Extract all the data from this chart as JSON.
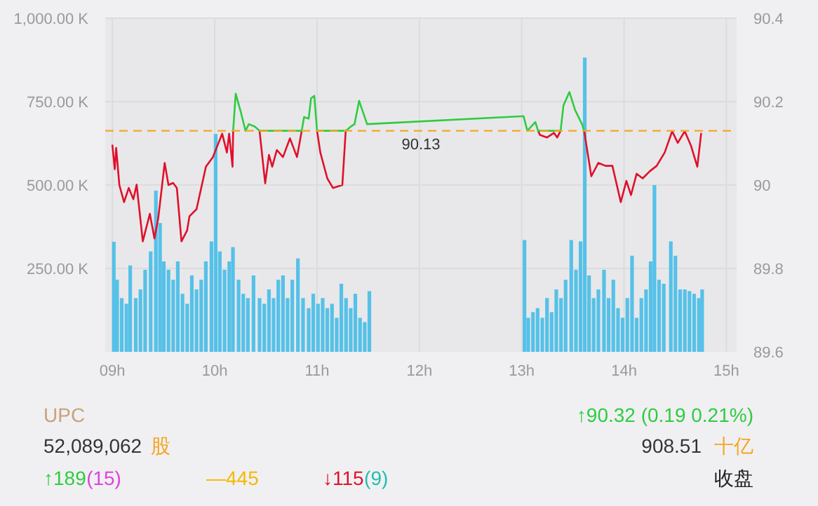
{
  "chart_data": {
    "type": "line",
    "xlim": [
      8.93,
      15.1
    ],
    "xticks": [
      {
        "value": 9,
        "label": "09h"
      },
      {
        "value": 10,
        "label": "10h"
      },
      {
        "value": 11,
        "label": "11h"
      },
      {
        "value": 12,
        "label": "12h"
      },
      {
        "value": 13,
        "label": "13h"
      },
      {
        "value": 14,
        "label": "14h"
      },
      {
        "value": 15,
        "label": "15h"
      }
    ],
    "ylim": [
      0,
      1000
    ],
    "yticks": [
      {
        "value": 250,
        "label": "250.00 K"
      },
      {
        "value": 500,
        "label": "500.00 K"
      },
      {
        "value": 750,
        "label": "750.00 K"
      },
      {
        "value": 1000,
        "label": "1,000.00 K"
      }
    ],
    "y2lim": [
      89.6,
      90.4
    ],
    "y2ticks": [
      89.6,
      89.8,
      90,
      90.2,
      90.4
    ],
    "grid": true,
    "ref_lines": [
      {
        "axis": "y2",
        "value": 90.13,
        "label": "90.13",
        "color": "#f5a623",
        "line_style": "dashed"
      }
    ],
    "series": [
      {
        "type": "bar",
        "axis": "y",
        "color": "#56c1e8",
        "x": [
          9.014,
          9.046,
          9.091,
          9.137,
          9.174,
          9.228,
          9.274,
          9.32,
          9.374,
          9.425,
          9.466,
          9.502,
          9.548,
          9.594,
          9.639,
          9.685,
          9.731,
          9.776,
          9.822,
          9.868,
          9.913,
          9.968,
          10.009,
          10.05,
          10.096,
          10.142,
          10.178,
          10.233,
          10.279,
          10.324,
          10.379,
          10.438,
          10.484,
          10.53,
          10.575,
          10.621,
          10.667,
          10.712,
          10.758,
          10.813,
          10.863,
          10.918,
          10.963,
          11.009,
          11.055,
          11.1,
          11.146,
          11.192,
          11.237,
          11.283,
          11.329,
          11.374,
          11.42,
          11.466,
          11.511,
          13.027,
          13.064,
          13.11,
          13.155,
          13.201,
          13.247,
          13.292,
          13.338,
          13.384,
          13.429,
          13.484,
          13.53,
          13.575,
          13.616,
          13.658,
          13.703,
          13.749,
          13.804,
          13.849,
          13.895,
          13.941,
          13.986,
          14.032,
          14.078,
          14.123,
          14.169,
          14.215,
          14.26,
          14.297,
          14.342,
          14.388,
          14.457,
          14.502,
          14.548,
          14.594,
          14.639,
          14.685,
          14.731,
          14.763
        ],
        "values": [
          330,
          216,
          161,
          144,
          259,
          161,
          187,
          246,
          301,
          483,
          386,
          271,
          246,
          216,
          271,
          174,
          144,
          229,
          187,
          216,
          271,
          331,
          653,
          301,
          246,
          271,
          314,
          216,
          174,
          161,
          229,
          161,
          144,
          187,
          161,
          216,
          229,
          161,
          216,
          280,
          161,
          131,
          174,
          144,
          161,
          131,
          144,
          102,
          204,
          161,
          131,
          174,
          102,
          89,
          182,
          335,
          102,
          119,
          131,
          102,
          161,
          119,
          187,
          161,
          216,
          335,
          246,
          331,
          882,
          229,
          161,
          187,
          246,
          161,
          216,
          131,
          102,
          161,
          288,
          102,
          161,
          187,
          271,
          500,
          216,
          204,
          331,
          288,
          187,
          187,
          182,
          174,
          161,
          187
        ]
      },
      {
        "axis": "y2",
        "color": "#e0102a",
        "x": [
          9.0,
          9.023,
          9.037,
          9.068,
          9.114,
          9.16,
          9.205,
          9.237,
          9.297,
          9.366,
          9.411,
          9.448,
          9.511,
          9.548,
          9.593,
          9.63,
          9.675,
          9.73,
          9.753,
          9.822,
          9.914,
          9.982,
          10.073,
          10.119,
          10.141,
          10.174,
          10.18,
          10.205,
          10.256,
          10.301,
          10.333,
          10.393,
          10.438,
          10.493,
          10.53,
          10.562,
          10.607,
          10.667,
          10.735,
          10.804,
          10.85,
          10.873,
          10.918,
          10.941,
          10.973,
          11.0,
          11.032,
          11.1,
          11.155,
          11.247,
          11.28,
          11.329,
          11.366,
          11.411,
          11.489,
          13.018,
          13.055,
          13.133,
          13.16,
          13.178,
          13.247,
          13.315,
          13.347,
          13.38,
          13.408,
          13.466,
          13.521,
          13.589,
          13.61,
          13.68,
          13.749,
          13.818,
          13.886,
          13.968,
          14.023,
          14.068,
          14.123,
          14.182,
          14.251,
          14.319,
          14.397,
          14.47,
          14.525,
          14.593,
          14.653,
          14.716,
          14.753
        ],
        "values": [
          90.095,
          90.038,
          90.089,
          90.0,
          89.959,
          89.993,
          89.966,
          90.001,
          89.865,
          89.931,
          89.872,
          89.92,
          90.053,
          90.0,
          90.005,
          89.993,
          89.865,
          89.891,
          89.925,
          89.942,
          90.044,
          90.067,
          90.123,
          90.078,
          90.123,
          90.044,
          90.13,
          null,
          null,
          null,
          null,
          null,
          90.13,
          90.004,
          90.072,
          90.044,
          90.084,
          90.067,
          90.112,
          90.067,
          90.13,
          null,
          null,
          null,
          null,
          90.13,
          90.078,
          90.016,
          89.993,
          90.0,
          90.13,
          null,
          null,
          null,
          null,
          null,
          null,
          null,
          90.13,
          90.12,
          90.114,
          90.125,
          90.114,
          90.13,
          null,
          null,
          null,
          null,
          90.13,
          90.021,
          90.053,
          90.046,
          90.046,
          89.959,
          90.01,
          89.976,
          90.027,
          90.016,
          90.033,
          90.046,
          90.078,
          90.129,
          90.101,
          90.129,
          90.095,
          90.044,
          90.123
        ]
      },
      {
        "axis": "y2",
        "color": "#2ecc40",
        "x": [
          10.18,
          10.205,
          10.256,
          10.301,
          10.333,
          10.393,
          10.438,
          10.85,
          10.873,
          10.918,
          10.941,
          10.973,
          11.0,
          11.28,
          11.329,
          11.366,
          11.411,
          11.489,
          13.018,
          13.055,
          13.133,
          13.16,
          13.38,
          13.408,
          13.466,
          13.521,
          13.589,
          13.61
        ],
        "values": [
          90.13,
          90.219,
          90.174,
          90.13,
          90.146,
          90.14,
          90.13,
          90.13,
          90.163,
          90.159,
          90.208,
          90.214,
          90.13,
          90.13,
          90.14,
          90.146,
          90.202,
          90.146,
          90.165,
          90.13,
          90.151,
          90.13,
          90.13,
          90.191,
          90.223,
          90.18,
          90.146,
          90.13
        ]
      }
    ],
    "annotations": [
      "UPC",
      "↑90.32 (0.19 0.21%)",
      "52,089,062",
      "股",
      "908.51",
      "十亿",
      "↑189",
      "(15)",
      "—445",
      "↓115",
      "(9)",
      "收盘"
    ]
  }
}
